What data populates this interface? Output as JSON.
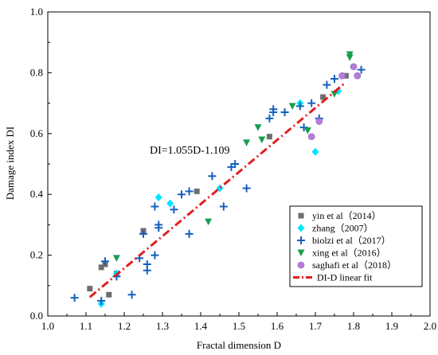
{
  "chart_data": {
    "type": "scatter",
    "xlabel": "Fractal dimension D",
    "ylabel": "Damage index DI",
    "xlim": [
      1.0,
      2.0
    ],
    "ylim": [
      0.0,
      1.0
    ],
    "x_ticks": [
      "1.0",
      "1.1",
      "1.2",
      "1.3",
      "1.4",
      "1.5",
      "1.6",
      "1.7",
      "1.8",
      "1.9",
      "2.0"
    ],
    "y_ticks": [
      "0.0",
      "0.2",
      "0.4",
      "0.6",
      "0.8",
      "1.0"
    ],
    "grid": false,
    "legend_position": "bottom-right",
    "annotation": "DI=1.055D-1.109",
    "series": [
      {
        "name": "yin et al（2014）",
        "marker": "square",
        "color": "#6e6e6e",
        "points": [
          [
            1.11,
            0.09
          ],
          [
            1.14,
            0.16
          ],
          [
            1.15,
            0.17
          ],
          [
            1.16,
            0.07
          ],
          [
            1.18,
            0.14
          ],
          [
            1.25,
            0.28
          ],
          [
            1.39,
            0.41
          ],
          [
            1.58,
            0.59
          ],
          [
            1.72,
            0.72
          ],
          [
            1.78,
            0.79
          ]
        ]
      },
      {
        "name": "zhang（2007）",
        "marker": "diamond",
        "color": "#00e5ff",
        "points": [
          [
            1.14,
            0.04
          ],
          [
            1.18,
            0.14
          ],
          [
            1.29,
            0.39
          ],
          [
            1.32,
            0.37
          ],
          [
            1.45,
            0.42
          ],
          [
            1.66,
            0.7
          ],
          [
            1.7,
            0.54
          ],
          [
            1.76,
            0.74
          ]
        ]
      },
      {
        "name": "biolzi et al（2017）",
        "marker": "plus",
        "color": "#1560bd",
        "points": [
          [
            1.07,
            0.06
          ],
          [
            1.14,
            0.05
          ],
          [
            1.15,
            0.18
          ],
          [
            1.18,
            0.13
          ],
          [
            1.22,
            0.07
          ],
          [
            1.24,
            0.19
          ],
          [
            1.25,
            0.27
          ],
          [
            1.26,
            0.15
          ],
          [
            1.26,
            0.17
          ],
          [
            1.28,
            0.2
          ],
          [
            1.28,
            0.36
          ],
          [
            1.29,
            0.29
          ],
          [
            1.29,
            0.3
          ],
          [
            1.33,
            0.35
          ],
          [
            1.35,
            0.4
          ],
          [
            1.37,
            0.41
          ],
          [
            1.37,
            0.27
          ],
          [
            1.43,
            0.46
          ],
          [
            1.46,
            0.36
          ],
          [
            1.48,
            0.49
          ],
          [
            1.49,
            0.5
          ],
          [
            1.52,
            0.42
          ],
          [
            1.58,
            0.65
          ],
          [
            1.59,
            0.68
          ],
          [
            1.59,
            0.67
          ],
          [
            1.62,
            0.67
          ],
          [
            1.66,
            0.69
          ],
          [
            1.67,
            0.62
          ],
          [
            1.69,
            0.7
          ],
          [
            1.71,
            0.65
          ],
          [
            1.73,
            0.76
          ],
          [
            1.75,
            0.78
          ],
          [
            1.82,
            0.81
          ]
        ]
      },
      {
        "name": "xing et al（2016）",
        "marker": "triangle-down",
        "color": "#1a9e50",
        "points": [
          [
            1.18,
            0.19
          ],
          [
            1.42,
            0.31
          ],
          [
            1.52,
            0.57
          ],
          [
            1.55,
            0.62
          ],
          [
            1.56,
            0.58
          ],
          [
            1.64,
            0.69
          ],
          [
            1.68,
            0.61
          ],
          [
            1.75,
            0.73
          ],
          [
            1.79,
            0.85
          ],
          [
            1.79,
            0.86
          ]
        ]
      },
      {
        "name": "saghafi et al（2018）",
        "marker": "circle",
        "color": "#b57edc",
        "points": [
          [
            1.69,
            0.59
          ],
          [
            1.71,
            0.64
          ],
          [
            1.77,
            0.79
          ],
          [
            1.8,
            0.82
          ],
          [
            1.81,
            0.79
          ]
        ]
      },
      {
        "name": "DI-D linear fit",
        "marker": "line",
        "color": "#e02020",
        "line": [
          [
            1.11,
            0.062
          ],
          [
            1.78,
            0.769
          ]
        ]
      }
    ]
  }
}
